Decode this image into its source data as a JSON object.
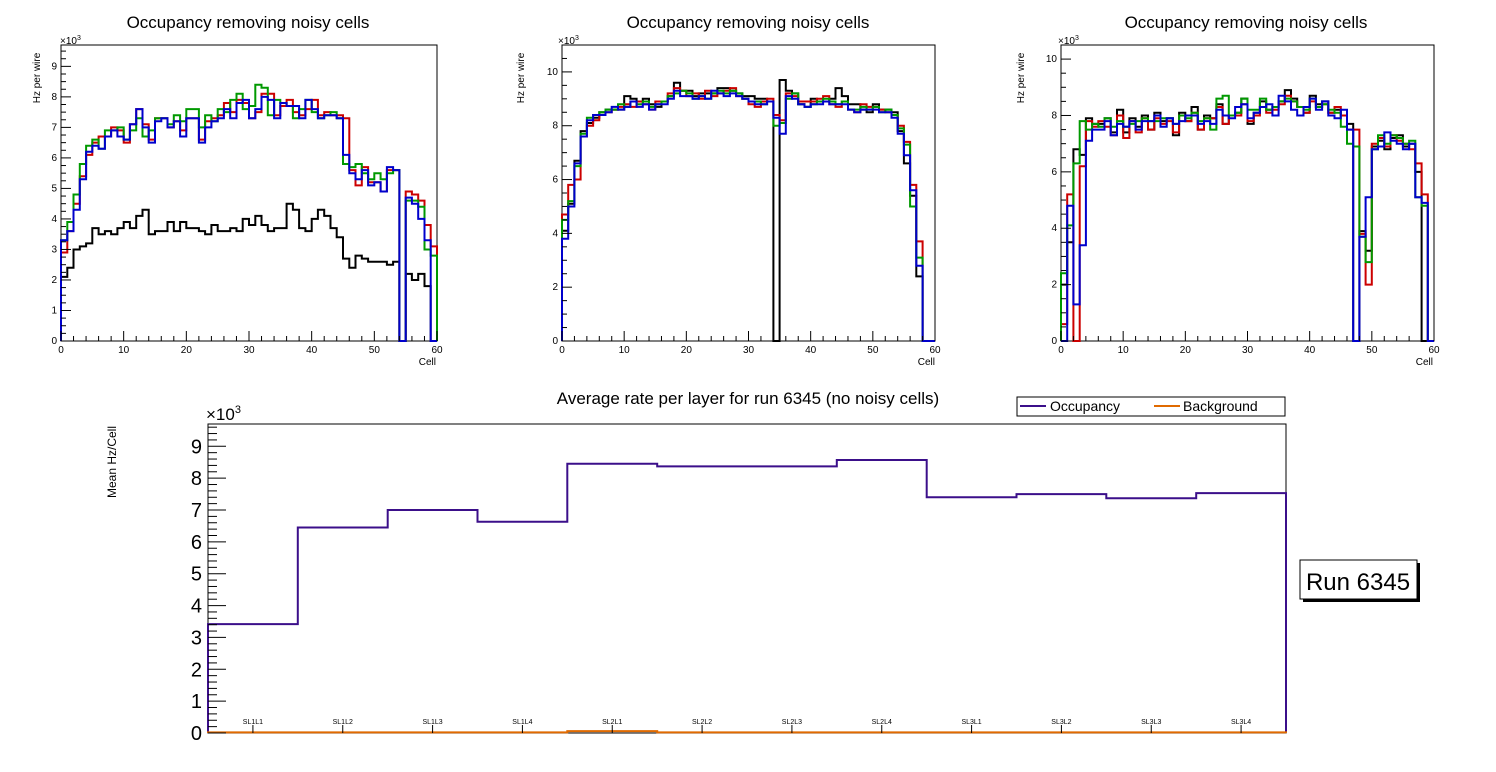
{
  "chart_data": [
    {
      "type": "line",
      "title": "Occupancy removing noisy cells",
      "xlabel": "Cell",
      "ylabel": "Hz per wire",
      "y_multiplier": "×10",
      "y_multiplier_exp": "3",
      "xlim": [
        0,
        60
      ],
      "ylim": [
        0,
        9.7
      ],
      "x_ticks": [
        0,
        10,
        20,
        30,
        40,
        50,
        60
      ],
      "y_ticks": [
        0,
        1,
        2,
        3,
        4,
        5,
        6,
        7,
        8,
        9
      ],
      "series": [
        {
          "name": "layer-black",
          "color": "#000000",
          "values": [
            2.1,
            2.4,
            3.0,
            3.1,
            3.2,
            3.7,
            3.5,
            3.6,
            3.5,
            3.7,
            3.9,
            3.7,
            4.1,
            4.3,
            3.5,
            3.6,
            3.6,
            3.9,
            3.6,
            3.9,
            3.7,
            3.7,
            3.6,
            3.5,
            3.8,
            3.6,
            3.6,
            3.7,
            3.6,
            4.0,
            3.8,
            4.1,
            3.8,
            3.6,
            3.7,
            3.7,
            4.5,
            4.3,
            3.7,
            3.6,
            4.0,
            4.3,
            4.1,
            3.7,
            3.4,
            2.7,
            2.4,
            2.8,
            2.7,
            2.6,
            2.6,
            2.6,
            2.5,
            2.6,
            0,
            2.2,
            2.0,
            2.2,
            1.8,
            0
          ]
        },
        {
          "name": "layer-red",
          "color": "#cc0000",
          "values": [
            2.9,
            3.6,
            4.5,
            5.4,
            6.1,
            6.5,
            6.7,
            6.7,
            7.0,
            6.9,
            6.5,
            7.1,
            7.6,
            7.1,
            6.6,
            7.3,
            7.3,
            7.0,
            7.2,
            6.9,
            7.3,
            7.3,
            6.6,
            7.2,
            7.3,
            7.4,
            7.8,
            7.5,
            7.9,
            7.8,
            7.3,
            7.5,
            8.1,
            8.1,
            7.4,
            7.7,
            7.9,
            7.5,
            7.4,
            7.6,
            7.9,
            7.4,
            7.5,
            7.4,
            7.4,
            7.3,
            5.6,
            5.1,
            5.7,
            5.2,
            5.2,
            4.9,
            5.6,
            5.6,
            0,
            4.9,
            4.8,
            4.6,
            3.8,
            3.1
          ]
        },
        {
          "name": "layer-green",
          "color": "#009900",
          "values": [
            3.3,
            3.9,
            4.8,
            5.8,
            6.4,
            6.6,
            6.3,
            6.9,
            6.9,
            7.0,
            6.6,
            6.9,
            7.3,
            6.7,
            6.9,
            7.3,
            7.3,
            7.1,
            7.4,
            7.2,
            7.6,
            7.6,
            7.0,
            7.4,
            7.2,
            7.6,
            7.5,
            7.9,
            8.1,
            7.6,
            7.7,
            8.4,
            8.3,
            7.4,
            7.9,
            7.8,
            7.7,
            7.3,
            7.6,
            7.9,
            7.5,
            7.3,
            7.4,
            7.5,
            7.3,
            5.8,
            5.7,
            5.8,
            5.5,
            5.3,
            5.5,
            5.3,
            5.5,
            5.6,
            0,
            4.6,
            4.6,
            4.4,
            3.0,
            2.8
          ]
        },
        {
          "name": "layer-blue",
          "color": "#0000cc",
          "values": [
            3.3,
            3.6,
            4.3,
            5.3,
            6.2,
            6.4,
            6.3,
            6.7,
            6.9,
            6.7,
            6.6,
            7.1,
            7.6,
            7.0,
            6.5,
            7.2,
            7.3,
            7.0,
            7.2,
            6.7,
            7.3,
            7.3,
            6.5,
            7.0,
            7.2,
            7.3,
            7.6,
            7.3,
            7.8,
            7.9,
            7.3,
            7.6,
            8.0,
            7.9,
            7.3,
            7.8,
            7.7,
            7.7,
            7.3,
            7.9,
            7.6,
            7.3,
            7.4,
            7.4,
            7.3,
            6.1,
            5.5,
            5.3,
            5.6,
            5.1,
            5.2,
            4.9,
            5.7,
            5.6,
            0,
            4.7,
            4.5,
            4.0,
            3.3,
            0
          ]
        }
      ]
    },
    {
      "type": "line",
      "title": "Occupancy removing noisy cells",
      "xlabel": "Cell",
      "ylabel": "Hz per wire",
      "y_multiplier": "×10",
      "y_multiplier_exp": "3",
      "xlim": [
        0,
        60
      ],
      "ylim": [
        0,
        11
      ],
      "x_ticks": [
        0,
        10,
        20,
        30,
        40,
        50,
        60
      ],
      "y_ticks": [
        0,
        2,
        4,
        6,
        8,
        10
      ],
      "series": [
        {
          "name": "layer-black",
          "color": "#000000",
          "values": [
            4.1,
            5.1,
            6.7,
            7.8,
            8.1,
            8.3,
            8.5,
            8.6,
            8.6,
            8.6,
            9.1,
            9.0,
            8.9,
            9.0,
            8.8,
            8.7,
            8.9,
            9.1,
            9.6,
            9.3,
            9.3,
            9.1,
            9.2,
            9.2,
            9.2,
            9.4,
            9.4,
            9.3,
            9.2,
            9.1,
            9.1,
            9.0,
            9.0,
            8.9,
            0,
            9.7,
            9.3,
            9.2,
            8.8,
            8.7,
            9.0,
            8.9,
            8.9,
            9.0,
            9.4,
            9.1,
            8.8,
            8.8,
            8.6,
            8.5,
            8.8,
            8.6,
            8.6,
            8.5,
            7.8,
            6.6,
            5.4,
            2.4,
            0,
            0
          ]
        },
        {
          "name": "layer-red",
          "color": "#cc0000",
          "values": [
            4.7,
            5.8,
            6.0,
            7.6,
            8.0,
            8.2,
            8.4,
            8.5,
            8.6,
            8.7,
            8.8,
            8.7,
            8.9,
            8.8,
            8.6,
            8.9,
            8.9,
            9.2,
            9.4,
            9.3,
            9.1,
            9.2,
            9.0,
            9.3,
            9.1,
            9.2,
            9.3,
            9.4,
            9.1,
            9.0,
            8.8,
            8.7,
            8.9,
            9.0,
            8.4,
            8.2,
            9.2,
            9.1,
            8.9,
            8.9,
            8.9,
            9.0,
            9.1,
            8.8,
            8.7,
            8.9,
            8.6,
            8.5,
            8.8,
            8.7,
            8.7,
            8.6,
            8.5,
            8.4,
            8.0,
            7.4,
            5.8,
            3.7,
            0,
            0
          ]
        },
        {
          "name": "layer-green",
          "color": "#009900",
          "values": [
            4.5,
            5.2,
            6.5,
            7.7,
            8.3,
            8.4,
            8.5,
            8.6,
            8.6,
            8.8,
            8.7,
            8.9,
            8.8,
            8.9,
            8.7,
            8.8,
            8.9,
            9.1,
            9.2,
            9.3,
            9.2,
            9.0,
            9.1,
            9.0,
            9.2,
            9.3,
            9.2,
            9.3,
            9.2,
            9.0,
            8.9,
            8.9,
            8.8,
            8.9,
            8.0,
            8.1,
            9.0,
            9.2,
            8.8,
            8.7,
            8.8,
            8.9,
            9.0,
            8.9,
            8.8,
            8.9,
            8.6,
            8.6,
            8.7,
            8.6,
            8.7,
            8.5,
            8.6,
            8.4,
            7.9,
            7.3,
            5.0,
            3.1,
            0,
            0
          ]
        },
        {
          "name": "layer-blue",
          "color": "#0000cc",
          "values": [
            3.8,
            5.0,
            6.6,
            7.6,
            8.2,
            8.4,
            8.4,
            8.5,
            8.7,
            8.6,
            8.7,
            8.9,
            8.7,
            8.8,
            8.6,
            8.8,
            8.8,
            9.0,
            9.3,
            9.1,
            9.1,
            9.0,
            9.1,
            9.0,
            9.3,
            9.2,
            9.1,
            9.2,
            9.1,
            9.0,
            8.9,
            8.8,
            8.8,
            8.9,
            8.3,
            7.7,
            9.1,
            9.0,
            8.8,
            8.7,
            8.8,
            8.8,
            8.9,
            8.8,
            8.8,
            8.8,
            8.6,
            8.5,
            8.6,
            8.6,
            8.6,
            8.5,
            8.5,
            8.3,
            7.7,
            6.9,
            5.6,
            2.8,
            0,
            0
          ]
        }
      ]
    },
    {
      "type": "line",
      "title": "Occupancy removing noisy cells",
      "xlabel": "Cell",
      "ylabel": "Hz per wire",
      "y_multiplier": "×10",
      "y_multiplier_exp": "3",
      "xlim": [
        0,
        60
      ],
      "ylim": [
        0,
        10.5
      ],
      "x_ticks": [
        0,
        10,
        20,
        30,
        40,
        50,
        60
      ],
      "y_ticks": [
        0,
        2,
        4,
        6,
        8,
        10
      ],
      "series": [
        {
          "name": "layer-black",
          "color": "#000000",
          "values": [
            2.0,
            3.5,
            6.8,
            6.6,
            7.9,
            7.7,
            7.7,
            7.9,
            7.4,
            8.2,
            7.4,
            7.9,
            7.6,
            8.0,
            7.5,
            8.1,
            7.8,
            7.9,
            7.3,
            8.1,
            7.8,
            8.3,
            7.5,
            8.0,
            7.9,
            8.4,
            7.7,
            8.0,
            8.1,
            8.6,
            7.7,
            8.1,
            8.5,
            8.2,
            8.3,
            8.5,
            8.9,
            8.6,
            8.3,
            8.1,
            8.7,
            8.4,
            8.5,
            8.1,
            8.2,
            8.0,
            7.7,
            0,
            3.9,
            3.2,
            6.9,
            7.1,
            6.8,
            7.2,
            7.3,
            6.9,
            7.0,
            6.0,
            0,
            0
          ]
        },
        {
          "name": "layer-red",
          "color": "#cc0000",
          "values": [
            0.6,
            5.2,
            0,
            6.2,
            7.8,
            7.6,
            7.8,
            7.6,
            7.3,
            8.0,
            7.2,
            7.8,
            7.4,
            7.9,
            7.5,
            7.9,
            7.7,
            7.8,
            7.4,
            8.0,
            7.8,
            8.1,
            7.5,
            7.9,
            7.9,
            8.3,
            7.7,
            8.0,
            8.0,
            8.4,
            7.8,
            8.0,
            8.3,
            8.1,
            8.2,
            8.4,
            8.7,
            8.5,
            8.3,
            8.1,
            8.5,
            8.3,
            8.4,
            8.1,
            8.3,
            8.0,
            7.5,
            7.5,
            3.8,
            2.0,
            7.0,
            7.2,
            6.9,
            7.3,
            7.1,
            7.0,
            6.8,
            6.3,
            5.2,
            0
          ]
        },
        {
          "name": "layer-green",
          "color": "#009900",
          "values": [
            2.4,
            4.1,
            6.3,
            7.8,
            7.5,
            7.7,
            7.6,
            7.9,
            7.6,
            7.8,
            7.6,
            7.7,
            7.8,
            7.9,
            7.8,
            7.8,
            7.9,
            7.9,
            7.7,
            8.0,
            7.9,
            8.1,
            7.8,
            7.9,
            7.5,
            8.6,
            8.7,
            8.0,
            8.1,
            8.6,
            8.2,
            8.2,
            8.6,
            8.2,
            8.3,
            8.5,
            8.6,
            8.5,
            8.3,
            8.2,
            8.6,
            8.3,
            8.4,
            8.2,
            8.1,
            7.6,
            7.0,
            6.9,
            3.7,
            2.8,
            6.8,
            7.3,
            7.0,
            7.3,
            7.2,
            7.0,
            7.1,
            5.1,
            4.8,
            0
          ]
        },
        {
          "name": "layer-blue",
          "color": "#0000cc",
          "values": [
            0,
            4.8,
            1.3,
            3.4,
            7.1,
            7.5,
            7.5,
            7.8,
            7.3,
            7.7,
            7.6,
            7.8,
            7.5,
            7.8,
            7.8,
            8.0,
            7.6,
            7.9,
            7.7,
            7.8,
            8.0,
            8.0,
            7.7,
            7.8,
            7.7,
            8.2,
            8.0,
            7.9,
            8.3,
            8.4,
            7.9,
            8.1,
            8.3,
            8.4,
            8.0,
            8.7,
            8.5,
            8.2,
            8.0,
            8.3,
            8.6,
            8.2,
            8.5,
            8.0,
            7.9,
            8.2,
            7.5,
            0,
            3.7,
            5.1,
            6.8,
            6.9,
            7.4,
            7.1,
            7.0,
            6.8,
            7.0,
            5.1,
            4.9,
            0
          ]
        }
      ]
    },
    {
      "type": "line",
      "title": "Average rate per layer for run 6345 (no noisy cells)",
      "xlabel": "",
      "ylabel": "Mean Hz/Cell",
      "y_multiplier": "×10",
      "y_multiplier_exp": "3",
      "ylim": [
        0,
        9.7
      ],
      "y_ticks": [
        0,
        1,
        2,
        3,
        4,
        5,
        6,
        7,
        8,
        9
      ],
      "categories": [
        "SL1L1",
        "SL1L2",
        "SL1L3",
        "SL1L4",
        "SL2L1",
        "SL2L2",
        "SL2L3",
        "SL2L4",
        "SL3L1",
        "SL3L2",
        "SL3L3",
        "SL3L4"
      ],
      "legend_position": "top-right",
      "series": [
        {
          "name": "Occupancy",
          "color": "#3b0f8a",
          "values": [
            3.42,
            6.45,
            7.0,
            6.63,
            8.45,
            8.37,
            8.37,
            8.57,
            7.4,
            7.5,
            7.37,
            7.53
          ]
        },
        {
          "name": "Background",
          "color": "#e06a00",
          "values": [
            0.02,
            0.02,
            0.02,
            0.02,
            0.06,
            0.02,
            0.02,
            0.02,
            0.02,
            0.02,
            0.02,
            0.02
          ]
        }
      ]
    }
  ],
  "run_label": "Run 6345"
}
